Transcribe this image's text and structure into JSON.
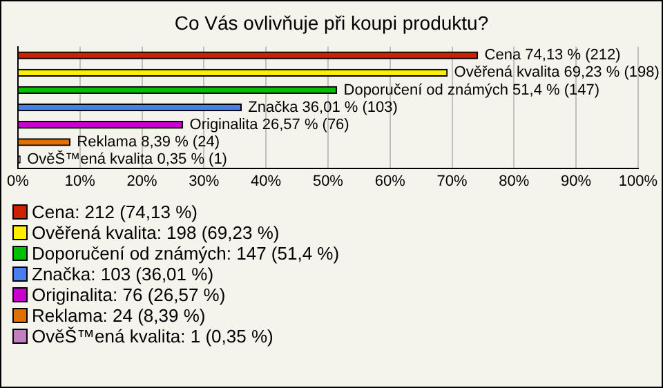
{
  "chart_data": {
    "type": "bar",
    "orientation": "horizontal",
    "title": "Co Vás ovlivňuje při koupi produktu?",
    "categories": [
      "Cena",
      "Ověřená kvalita",
      "Doporučení od známých",
      "Značka",
      "Originalita",
      "Reklama",
      "OvěŠ™ená kvalita"
    ],
    "values": [
      74.13,
      69.23,
      51.4,
      36.01,
      26.57,
      8.39,
      0.35
    ],
    "colors": [
      "#cc2200",
      "#ffee00",
      "#00c000",
      "#4a7ef0",
      "#cc00cc",
      "#e07000",
      "#c080c0"
    ],
    "value_labels": [
      "74,13 % (212)",
      "69,23 % (198)",
      "51,4 % (147)",
      "36,01 % (103)",
      "26,57 % (76)",
      "8,39 % (24)",
      "0,35 % (1)"
    ],
    "annotations": [
      "Cena: 212 (74,13 %)",
      "Ověřená kvalita: 198 (69,23 %)",
      "Doporučení od známých: 147 (51,4 %)",
      "Značka: 103 (36,01 %)",
      "Originalita: 76 (26,57 %)",
      "Reklama: 24 (8,39 %)",
      "OvěŠ™ená kvalita: 1 (0,35 %)"
    ],
    "xlim": [
      0,
      100
    ],
    "xticks": [
      {
        "value": 0,
        "label": "0%"
      },
      {
        "value": 10,
        "label": "10%"
      },
      {
        "value": 20,
        "label": "20%"
      },
      {
        "value": 30,
        "label": "30%"
      },
      {
        "value": 40,
        "label": "40%"
      },
      {
        "value": 50,
        "label": "50%"
      },
      {
        "value": 60,
        "label": "60%"
      },
      {
        "value": 70,
        "label": "70%"
      },
      {
        "value": 80,
        "label": "80%"
      },
      {
        "value": 90,
        "label": "90%"
      },
      {
        "value": 100,
        "label": "100%"
      }
    ],
    "grid": "x",
    "tick_labels": "x"
  }
}
